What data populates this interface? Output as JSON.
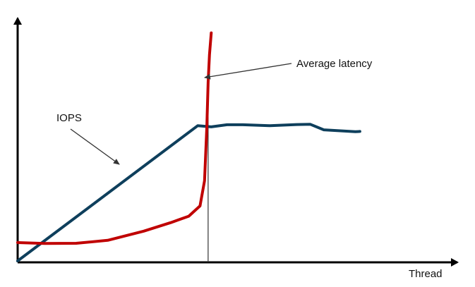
{
  "chart_data": {
    "type": "line",
    "title": "",
    "xlabel": "Thread",
    "ylabel": "",
    "axis_ticks": false,
    "grid": false,
    "legend": "none",
    "xlim": [
      0,
      10
    ],
    "ylim": [
      0,
      10
    ],
    "series": [
      {
        "name": "IOPS",
        "color": "#0e3f5c",
        "x": [
          0,
          4.0,
          4.3,
          4.65,
          5.0,
          5.6,
          6.2,
          6.5,
          6.8,
          7.5,
          7.6
        ],
        "y": [
          0,
          5.9,
          5.85,
          5.94,
          5.94,
          5.9,
          5.95,
          5.96,
          5.72,
          5.64,
          5.65
        ]
      },
      {
        "name": "Average latency",
        "color": "#c00000",
        "x": [
          0,
          0.6,
          1.3,
          2.0,
          2.8,
          3.4,
          3.8,
          4.05,
          4.15,
          4.2,
          4.23,
          4.26,
          4.3
        ],
        "y": [
          0.8,
          0.76,
          0.77,
          0.9,
          1.3,
          1.67,
          1.95,
          2.4,
          3.5,
          5.8,
          7.8,
          9.0,
          9.95
        ]
      }
    ],
    "vline_x": 4.23,
    "annotations": [
      {
        "text": "IOPS",
        "series": "IOPS"
      },
      {
        "text": "Average latency",
        "series": "Average latency"
      }
    ]
  }
}
